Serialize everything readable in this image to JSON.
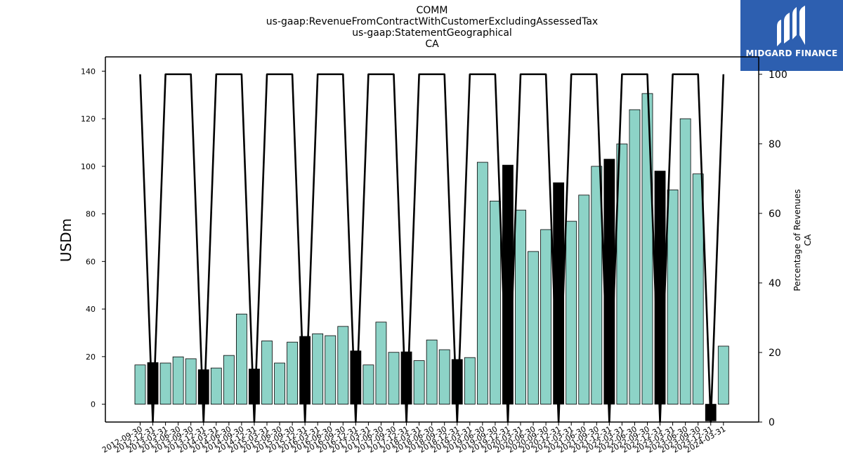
{
  "header": {
    "title_lines": [
      "COMM",
      "us-gaap:RevenueFromContractWithCustomerExcludingAssessedTax",
      "us-gaap:StatementGeographical",
      "CA"
    ]
  },
  "logo": {
    "text": "MIDGARD FINANCE",
    "icon": "midgard-logo-icon",
    "background": "#2d5fb0"
  },
  "colors": {
    "normal_bar": "#8dd3c7",
    "highlight_bar": "#000000",
    "line": "#000000"
  },
  "chart_data": {
    "type": "bar",
    "ylabel": "USDm",
    "y2label_lines": [
      "Percentage of Revenues",
      "CA"
    ],
    "ylim": [
      -7.5,
      146
    ],
    "y2lim": [
      0,
      105
    ],
    "yticks": [
      0,
      20,
      40,
      60,
      80,
      100,
      120,
      140
    ],
    "y2ticks": [
      0,
      20,
      40,
      60,
      80,
      100
    ],
    "grid": false,
    "categories": [
      "2012-09-30",
      "2012-12-31",
      "2013-03-31",
      "2013-06-30",
      "2013-09-30",
      "2013-12-31",
      "2014-03-31",
      "2014-06-30",
      "2014-09-30",
      "2014-12-31",
      "2015-03-31",
      "2015-06-30",
      "2015-09-30",
      "2015-12-31",
      "2016-03-31",
      "2016-06-30",
      "2016-09-30",
      "2016-12-31",
      "2017-03-31",
      "2017-06-30",
      "2017-09-30",
      "2017-12-31",
      "2018-03-31",
      "2018-06-30",
      "2018-09-30",
      "2018-12-31",
      "2019-03-31",
      "2019-06-30",
      "2019-09-30",
      "2019-12-31",
      "2020-03-31",
      "2020-06-30",
      "2020-09-30",
      "2020-12-31",
      "2021-03-31",
      "2021-06-30",
      "2021-09-30",
      "2021-12-31",
      "2022-03-31",
      "2022-06-30",
      "2022-09-30",
      "2022-12-31",
      "2023-03-31",
      "2023-06-30",
      "2023-09-30",
      "2023-12-31",
      "2024-03-31"
    ],
    "series": [
      {
        "kind": "bar",
        "values": [
          16.5,
          17.5,
          17.3,
          19.9,
          19.1,
          14.5,
          15.2,
          20.5,
          37.9,
          14.8,
          26.6,
          17.3,
          26.1,
          28.5,
          29.6,
          28.8,
          32.7,
          22.4,
          16.5,
          34.5,
          21.8,
          22.0,
          18.3,
          27.0,
          22.9,
          18.8,
          19.6,
          101.7,
          85.4,
          100.5,
          81.6,
          64.2,
          73.4,
          93.1,
          76.9,
          87.9,
          100.0,
          103.0,
          109.4,
          123.8,
          130.6,
          98.0,
          90.1,
          120.0,
          96.8,
          -7.0,
          24.4
        ],
        "highlight": [
          false,
          true,
          false,
          false,
          false,
          true,
          false,
          false,
          false,
          true,
          false,
          false,
          false,
          true,
          false,
          false,
          false,
          true,
          false,
          false,
          false,
          true,
          false,
          false,
          false,
          true,
          false,
          false,
          false,
          true,
          false,
          false,
          false,
          true,
          false,
          false,
          false,
          true,
          false,
          false,
          false,
          true,
          false,
          false,
          false,
          true,
          false
        ]
      },
      {
        "kind": "line",
        "axis": "right",
        "values": [
          100,
          0,
          100,
          100,
          100,
          0,
          100,
          100,
          100,
          0,
          100,
          100,
          100,
          0,
          100,
          100,
          100,
          0,
          100,
          100,
          100,
          0,
          100,
          100,
          100,
          0,
          100,
          100,
          100,
          0,
          100,
          100,
          100,
          0,
          100,
          100,
          100,
          0,
          100,
          100,
          100,
          0,
          100,
          100,
          100,
          0,
          100
        ]
      }
    ]
  }
}
